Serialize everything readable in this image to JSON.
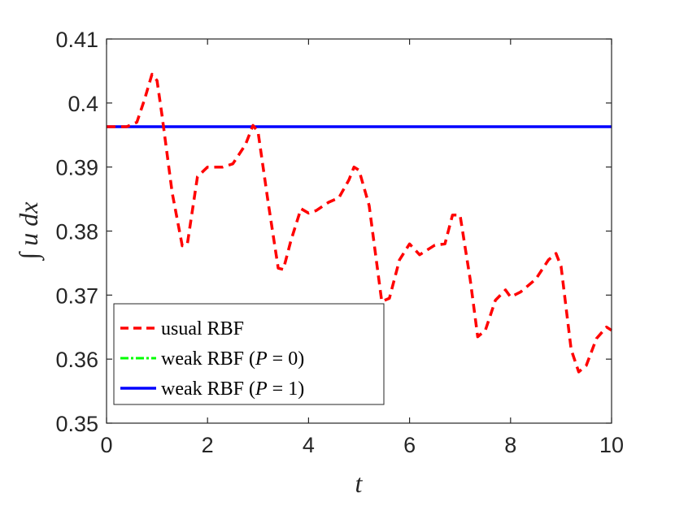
{
  "chart_data": {
    "type": "line",
    "title": "",
    "xlabel": "t",
    "ylabel": "∫ u dx",
    "xlim": [
      0,
      10
    ],
    "ylim": [
      0.35,
      0.41
    ],
    "xticks": [
      0,
      2,
      4,
      6,
      8,
      10
    ],
    "xtick_labels": [
      "0",
      "2",
      "4",
      "6",
      "8",
      "10"
    ],
    "yticks": [
      0.35,
      0.36,
      0.37,
      0.38,
      0.39,
      0.4,
      0.41
    ],
    "ytick_labels": [
      "0.35",
      "0.36",
      "0.37",
      "0.38",
      "0.39",
      "0.4",
      "0.41"
    ],
    "grid": false,
    "legend_position": "bottom-left",
    "series": [
      {
        "name": "usual RBF",
        "color": "#ff0000",
        "style": "dashed",
        "x": [
          0,
          0.4,
          0.6,
          0.75,
          0.9,
          1.0,
          1.1,
          1.3,
          1.5,
          1.6,
          1.8,
          2.0,
          2.3,
          2.5,
          2.75,
          2.9,
          3.0,
          3.2,
          3.4,
          3.5,
          3.65,
          3.85,
          4.0,
          4.15,
          4.4,
          4.6,
          4.8,
          4.9,
          5.0,
          5.2,
          5.45,
          5.6,
          5.8,
          6.0,
          6.2,
          6.5,
          6.7,
          6.85,
          7.0,
          7.2,
          7.35,
          7.5,
          7.7,
          7.9,
          8.0,
          8.2,
          8.5,
          8.75,
          8.9,
          9.0,
          9.2,
          9.35,
          9.5,
          9.7,
          9.9,
          10.0
        ],
        "y": [
          0.3963,
          0.3963,
          0.397,
          0.4005,
          0.4045,
          0.4035,
          0.398,
          0.386,
          0.3777,
          0.378,
          0.3885,
          0.39,
          0.39,
          0.3905,
          0.3935,
          0.3965,
          0.3955,
          0.3845,
          0.3742,
          0.374,
          0.3785,
          0.3835,
          0.3828,
          0.3832,
          0.3845,
          0.3852,
          0.388,
          0.39,
          0.3895,
          0.384,
          0.369,
          0.3695,
          0.3755,
          0.378,
          0.3763,
          0.3778,
          0.378,
          0.3825,
          0.3825,
          0.3725,
          0.3635,
          0.3645,
          0.3692,
          0.3708,
          0.3697,
          0.3705,
          0.3725,
          0.3755,
          0.3765,
          0.3745,
          0.3615,
          0.358,
          0.359,
          0.3632,
          0.365,
          0.3645
        ]
      },
      {
        "name": "weak RBF (P = 0)",
        "color": "#00ff00",
        "style": "dashdot",
        "x": [
          0,
          10
        ],
        "y": [
          0.3963,
          0.3963
        ]
      },
      {
        "name": "weak RBF (P = 1)",
        "color": "#0000ff",
        "style": "solid",
        "x": [
          0,
          10
        ],
        "y": [
          0.3963,
          0.3963
        ]
      }
    ]
  },
  "legend": {
    "item1": "usual RBF",
    "item2_prefix": "weak RBF (",
    "item2_var": "P",
    "item2_suffix": " = 0)",
    "item3_prefix": "weak RBF (",
    "item3_var": "P",
    "item3_suffix": " = 1)"
  }
}
